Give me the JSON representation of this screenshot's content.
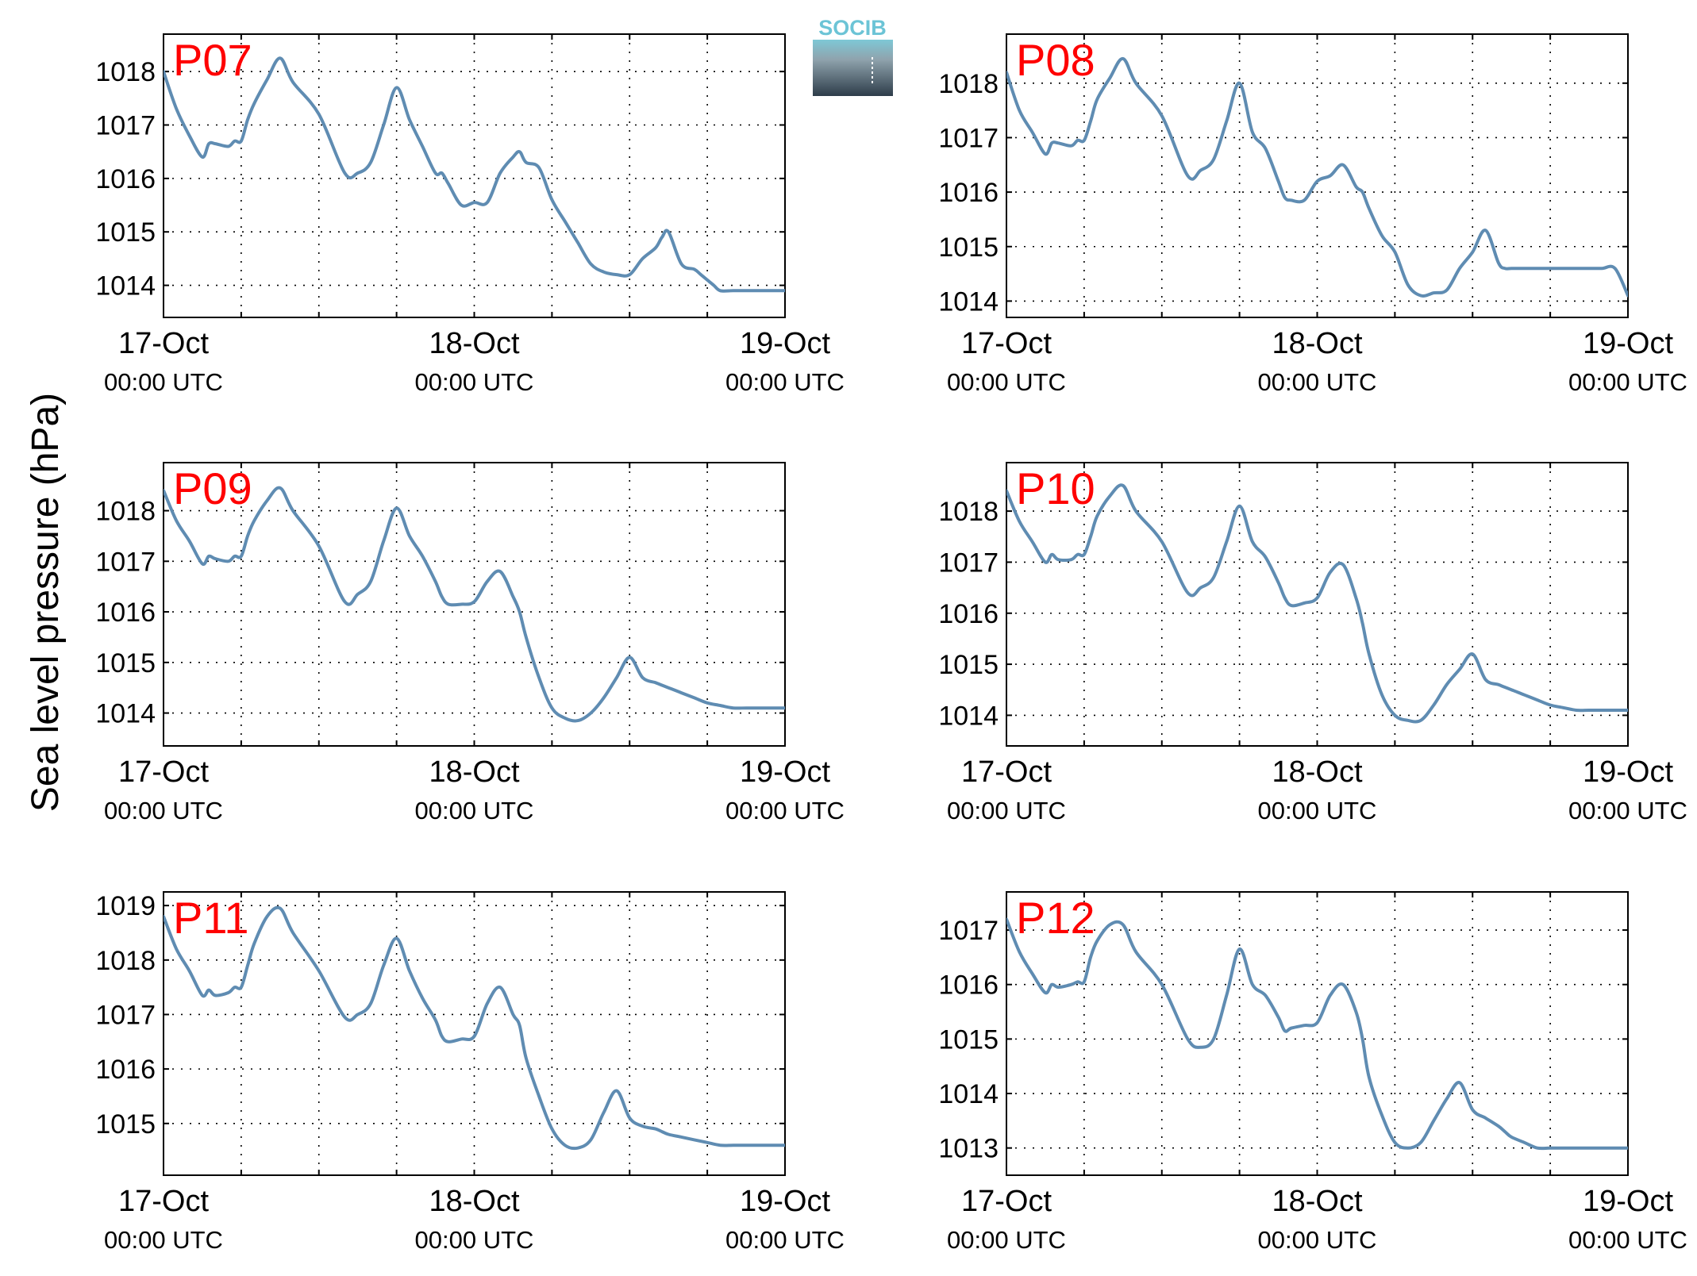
{
  "logo": {
    "text": "SOCIB",
    "colors": {
      "text": "#6cc4d6",
      "top": "#7ec8d6",
      "bottom": "#2e3d4a"
    }
  },
  "figure": {
    "ylabel": "Sea level pressure (hPa)",
    "line_color": "#5f8cb2",
    "label_color": "#ff0000",
    "grid": "dotted"
  },
  "chart_data": [
    {
      "type": "line",
      "name": "P07",
      "x_tick_labels": [
        {
          "date": "17-Oct",
          "time": "00:00 UTC"
        },
        {
          "date": "18-Oct",
          "time": "00:00 UTC"
        },
        {
          "date": "19-Oct",
          "time": "00:00 UTC"
        }
      ],
      "xlim_hours": [
        0,
        48
      ],
      "ylim": [
        1013.4,
        1018.7
      ],
      "yticks": [
        1014,
        1015,
        1016,
        1017,
        1018
      ],
      "series": [
        {
          "x": [
            0,
            1,
            2,
            3,
            3.5,
            4,
            5,
            5.5,
            6,
            6.5,
            7,
            8,
            9,
            10,
            12,
            14,
            15,
            16,
            17,
            18,
            19,
            20,
            21,
            21.5,
            22,
            23,
            24,
            25,
            26,
            27,
            27.5,
            28,
            29,
            30,
            31,
            31.5,
            32,
            33,
            34,
            35,
            36,
            37,
            38,
            38.5,
            39,
            40,
            41,
            41.5,
            42,
            42.5,
            43,
            44,
            45,
            46,
            47,
            48
          ],
          "y": [
            1018.0,
            1017.3,
            1016.8,
            1016.4,
            1016.65,
            1016.65,
            1016.6,
            1016.7,
            1016.7,
            1017.1,
            1017.4,
            1017.85,
            1018.25,
            1017.8,
            1017.2,
            1016.1,
            1016.1,
            1016.3,
            1017.0,
            1017.7,
            1017.1,
            1016.6,
            1016.1,
            1016.1,
            1015.9,
            1015.5,
            1015.55,
            1015.55,
            1016.1,
            1016.4,
            1016.5,
            1016.3,
            1016.2,
            1015.6,
            1015.2,
            1015.0,
            1014.8,
            1014.4,
            1014.25,
            1014.2,
            1014.2,
            1014.5,
            1014.7,
            1014.9,
            1015.0,
            1014.4,
            1014.3,
            1014.2,
            1014.1,
            1014.0,
            1013.9,
            1013.9,
            1013.9,
            1013.9,
            1013.9,
            1013.9
          ]
        }
      ]
    },
    {
      "type": "line",
      "name": "P08",
      "x_tick_labels": [
        {
          "date": "17-Oct",
          "time": "00:00 UTC"
        },
        {
          "date": "18-Oct",
          "time": "00:00 UTC"
        },
        {
          "date": "19-Oct",
          "time": "00:00 UTC"
        }
      ],
      "xlim_hours": [
        0,
        48
      ],
      "ylim": [
        1013.7,
        1018.9
      ],
      "yticks": [
        1014,
        1015,
        1016,
        1017,
        1018
      ],
      "series": [
        {
          "x": [
            0,
            1,
            2,
            3,
            3.5,
            4,
            5,
            5.5,
            6,
            6.5,
            7,
            8,
            9,
            10,
            12,
            14,
            15,
            16,
            17,
            18,
            19,
            20,
            21,
            21.5,
            22,
            23,
            24,
            25,
            26,
            27,
            27.5,
            28,
            29,
            30,
            31,
            32,
            33,
            34,
            35,
            36,
            37,
            38,
            38.5,
            39,
            40,
            41,
            42,
            43,
            44,
            45,
            46,
            47,
            48
          ],
          "y": [
            1018.2,
            1017.5,
            1017.1,
            1016.7,
            1016.9,
            1016.9,
            1016.85,
            1016.95,
            1016.95,
            1017.3,
            1017.7,
            1018.1,
            1018.45,
            1018.0,
            1017.4,
            1016.3,
            1016.4,
            1016.6,
            1017.3,
            1018.0,
            1017.1,
            1016.8,
            1016.2,
            1015.9,
            1015.85,
            1015.85,
            1016.2,
            1016.3,
            1016.5,
            1016.1,
            1016.0,
            1015.7,
            1015.2,
            1014.9,
            1014.3,
            1014.1,
            1014.15,
            1014.2,
            1014.6,
            1014.9,
            1015.3,
            1014.7,
            1014.6,
            1014.6,
            1014.6,
            1014.6,
            1014.6,
            1014.6,
            1014.6,
            1014.6,
            1014.6,
            1014.6,
            1014.1
          ]
        }
      ]
    },
    {
      "type": "line",
      "name": "P09",
      "x_tick_labels": [
        {
          "date": "17-Oct",
          "time": "00:00 UTC"
        },
        {
          "date": "18-Oct",
          "time": "00:00 UTC"
        },
        {
          "date": "19-Oct",
          "time": "00:00 UTC"
        }
      ],
      "xlim_hours": [
        0,
        48
      ],
      "ylim": [
        1013.35,
        1018.95
      ],
      "yticks": [
        1014,
        1015,
        1016,
        1017,
        1018
      ],
      "series": [
        {
          "x": [
            0,
            1,
            2,
            3,
            3.5,
            4,
            5,
            5.5,
            6,
            6.5,
            7,
            8,
            9,
            10,
            12,
            14,
            15,
            16,
            17,
            18,
            19,
            20,
            21,
            21.5,
            22,
            23,
            24,
            25,
            26,
            27,
            27.5,
            28,
            29,
            30,
            31,
            32,
            33,
            34,
            35,
            36,
            37,
            38,
            38.5,
            39,
            40,
            41,
            42,
            43,
            44,
            45,
            46,
            47,
            48
          ],
          "y": [
            1018.4,
            1017.8,
            1017.4,
            1016.95,
            1017.1,
            1017.05,
            1017.0,
            1017.1,
            1017.1,
            1017.5,
            1017.8,
            1018.2,
            1018.45,
            1018.0,
            1017.3,
            1016.2,
            1016.35,
            1016.6,
            1017.4,
            1018.05,
            1017.5,
            1017.1,
            1016.6,
            1016.3,
            1016.15,
            1016.15,
            1016.2,
            1016.6,
            1016.8,
            1016.3,
            1016.0,
            1015.5,
            1014.7,
            1014.1,
            1013.9,
            1013.85,
            1014.0,
            1014.3,
            1014.7,
            1015.1,
            1014.7,
            1014.6,
            1014.55,
            1014.5,
            1014.4,
            1014.3,
            1014.2,
            1014.15,
            1014.1,
            1014.1,
            1014.1,
            1014.1,
            1014.1
          ]
        }
      ]
    },
    {
      "type": "line",
      "name": "P10",
      "x_tick_labels": [
        {
          "date": "17-Oct",
          "time": "00:00 UTC"
        },
        {
          "date": "18-Oct",
          "time": "00:00 UTC"
        },
        {
          "date": "19-Oct",
          "time": "00:00 UTC"
        }
      ],
      "xlim_hours": [
        0,
        48
      ],
      "ylim": [
        1013.4,
        1018.95
      ],
      "yticks": [
        1014,
        1015,
        1016,
        1017,
        1018
      ],
      "series": [
        {
          "x": [
            0,
            1,
            2,
            3,
            3.5,
            4,
            5,
            5.5,
            6,
            6.5,
            7,
            8,
            9,
            10,
            12,
            14,
            15,
            16,
            17,
            18,
            19,
            20,
            21,
            21.5,
            22,
            23,
            24,
            25,
            26,
            27,
            27.5,
            28,
            29,
            30,
            31,
            32,
            33,
            34,
            35,
            36,
            37,
            38,
            38.5,
            39,
            40,
            41,
            42,
            43,
            44,
            45,
            46,
            47,
            48
          ],
          "y": [
            1018.4,
            1017.8,
            1017.4,
            1017.0,
            1017.15,
            1017.05,
            1017.05,
            1017.15,
            1017.15,
            1017.5,
            1017.9,
            1018.3,
            1018.5,
            1018.0,
            1017.4,
            1016.4,
            1016.5,
            1016.7,
            1017.4,
            1018.1,
            1017.4,
            1017.1,
            1016.6,
            1016.3,
            1016.15,
            1016.2,
            1016.3,
            1016.8,
            1016.95,
            1016.3,
            1015.8,
            1015.2,
            1014.4,
            1014.0,
            1013.9,
            1013.9,
            1014.2,
            1014.6,
            1014.9,
            1015.2,
            1014.7,
            1014.6,
            1014.55,
            1014.5,
            1014.4,
            1014.3,
            1014.2,
            1014.15,
            1014.1,
            1014.1,
            1014.1,
            1014.1,
            1014.1
          ]
        }
      ]
    },
    {
      "type": "line",
      "name": "P11",
      "x_tick_labels": [
        {
          "date": "17-Oct",
          "time": "00:00 UTC"
        },
        {
          "date": "18-Oct",
          "time": "00:00 UTC"
        },
        {
          "date": "19-Oct",
          "time": "00:00 UTC"
        }
      ],
      "xlim_hours": [
        0,
        48
      ],
      "ylim": [
        1014.05,
        1019.25
      ],
      "yticks": [
        1015,
        1016,
        1017,
        1018,
        1019
      ],
      "series": [
        {
          "x": [
            0,
            1,
            2,
            3,
            3.5,
            4,
            5,
            5.5,
            6,
            6.5,
            7,
            8,
            9,
            10,
            12,
            14,
            15,
            16,
            17,
            18,
            19,
            20,
            21,
            21.5,
            22,
            23,
            24,
            25,
            26,
            27,
            27.5,
            28,
            29,
            30,
            31,
            32,
            33,
            34,
            35,
            36,
            37,
            38,
            38.5,
            39,
            40,
            41,
            42,
            43,
            44,
            45,
            46,
            47,
            48
          ],
          "y": [
            1018.8,
            1018.2,
            1017.8,
            1017.35,
            1017.45,
            1017.35,
            1017.4,
            1017.5,
            1017.5,
            1017.9,
            1018.3,
            1018.8,
            1018.95,
            1018.5,
            1017.8,
            1016.95,
            1017.0,
            1017.2,
            1017.9,
            1018.4,
            1017.8,
            1017.3,
            1016.9,
            1016.6,
            1016.5,
            1016.55,
            1016.6,
            1017.2,
            1017.5,
            1017.0,
            1016.8,
            1016.2,
            1015.5,
            1014.9,
            1014.6,
            1014.55,
            1014.7,
            1015.2,
            1015.6,
            1015.1,
            1014.95,
            1014.9,
            1014.85,
            1014.8,
            1014.75,
            1014.7,
            1014.65,
            1014.6,
            1014.6,
            1014.6,
            1014.6,
            1014.6,
            1014.6
          ]
        }
      ]
    },
    {
      "type": "line",
      "name": "P12",
      "x_tick_labels": [
        {
          "date": "17-Oct",
          "time": "00:00 UTC"
        },
        {
          "date": "18-Oct",
          "time": "00:00 UTC"
        },
        {
          "date": "19-Oct",
          "time": "00:00 UTC"
        }
      ],
      "xlim_hours": [
        0,
        48
      ],
      "ylim": [
        1012.5,
        1017.7
      ],
      "yticks": [
        1013,
        1014,
        1015,
        1016,
        1017
      ],
      "series": [
        {
          "x": [
            0,
            1,
            2,
            3,
            3.5,
            4,
            5,
            5.5,
            6,
            6.5,
            7,
            8,
            9,
            10,
            12,
            14,
            15,
            16,
            17,
            18,
            19,
            20,
            21,
            21.5,
            22,
            23,
            24,
            25,
            26,
            27,
            27.5,
            28,
            29,
            30,
            31,
            32,
            33,
            34,
            35,
            36,
            37,
            38,
            38.5,
            39,
            40,
            41,
            42,
            43,
            44,
            45,
            46,
            47,
            48
          ],
          "y": [
            1017.2,
            1016.6,
            1016.2,
            1015.85,
            1016.0,
            1015.95,
            1016.0,
            1016.05,
            1016.05,
            1016.5,
            1016.8,
            1017.1,
            1017.1,
            1016.6,
            1016.0,
            1015.0,
            1014.85,
            1015.0,
            1015.8,
            1016.65,
            1016.0,
            1015.8,
            1015.4,
            1015.15,
            1015.2,
            1015.25,
            1015.3,
            1015.8,
            1016.0,
            1015.5,
            1015.0,
            1014.3,
            1013.6,
            1013.1,
            1013.0,
            1013.1,
            1013.5,
            1013.9,
            1014.2,
            1013.7,
            1013.55,
            1013.4,
            1013.3,
            1013.2,
            1013.1,
            1013.0,
            1013.0,
            1013.0,
            1013.0,
            1013.0,
            1013.0,
            1013.0,
            1013.0
          ]
        }
      ]
    }
  ]
}
